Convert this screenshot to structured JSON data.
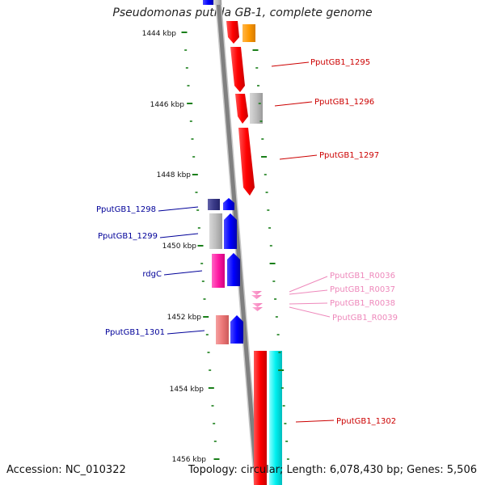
{
  "title": "Pseudomonas putida GB-1, complete genome",
  "footer": {
    "accession": "Accession: NC_010322",
    "summary": "Topology: circular; Length: 6,078,430 bp; Genes: 5,506"
  },
  "colors": {
    "backbone": "#808080",
    "forward_label": "#cc0000",
    "reverse_label": "#000099",
    "rna_label": "#ee88bb",
    "tick": "#1a7f1a"
  },
  "scale": {
    "unit": "kbp",
    "labels": [
      "1444 kbp",
      "1446 kbp",
      "1448 kbp",
      "1450 kbp",
      "1452 kbp",
      "1454 kbp",
      "1456 kbp"
    ]
  },
  "gene_labels": [
    {
      "text": "PputGB1_1295",
      "kind": "forward"
    },
    {
      "text": "PputGB1_1296",
      "kind": "forward"
    },
    {
      "text": "PputGB1_1297",
      "kind": "forward"
    },
    {
      "text": "PputGB1_1298",
      "kind": "reverse"
    },
    {
      "text": "PputGB1_1299",
      "kind": "reverse"
    },
    {
      "text": "rdgC",
      "kind": "reverse"
    },
    {
      "text": "PputGB1_1301",
      "kind": "reverse"
    },
    {
      "text": "PputGB1_R0036",
      "kind": "rna"
    },
    {
      "text": "PputGB1_R0037",
      "kind": "rna"
    },
    {
      "text": "PputGB1_R0038",
      "kind": "rna"
    },
    {
      "text": "PputGB1_R0039",
      "kind": "rna"
    },
    {
      "text": "PputGB1_1302",
      "kind": "forward"
    }
  ]
}
